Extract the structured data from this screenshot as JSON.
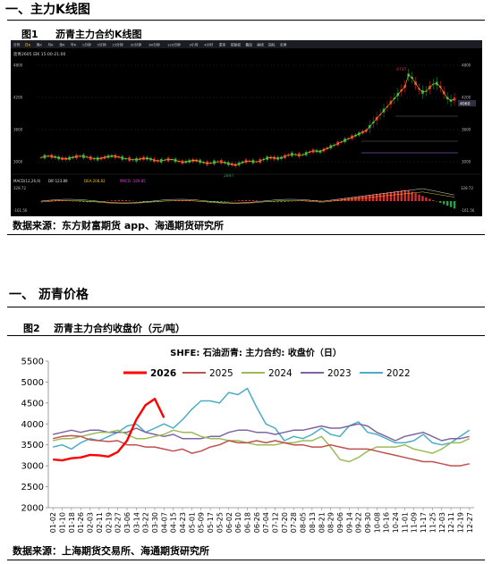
{
  "section1": {
    "title": "一、主力K线图"
  },
  "figure1": {
    "label": "图1",
    "title": "沥青主力合约K线图",
    "source": "数据来源：东方财富期货 app、海通期货研究所",
    "toolbar": [
      "分时",
      "日K",
      "周K",
      "月K",
      "季K",
      "年K",
      "1分钟",
      "5分钟",
      "15分钟",
      "30分钟",
      "60分钟",
      "120分钟",
      "3小时",
      "4小时",
      "更多",
      "前复权",
      "叠加",
      "画线",
      "指标",
      "全屏"
    ],
    "info_text": "沥青2605 日K 15:00-21:00",
    "high_label": "4747",
    "low_label": "2897",
    "last_label": "4060",
    "y_ticks": [
      "4800",
      "4200",
      "3600",
      "3000"
    ],
    "macd_label": "MACD(12,26,9)",
    "macd_legend": [
      "DIF:123.89",
      "DEA:208.82",
      "MACD:-169.85"
    ],
    "macd_ticks": [
      "328.72",
      "161.56",
      "-161.56"
    ],
    "colors": {
      "up": "#e82a2a",
      "down": "#1aa84a",
      "bg": "#000000",
      "dif": "#e0e0e0",
      "dea": "#e8c020"
    }
  },
  "section2": {
    "title": "一、 沥青价格"
  },
  "figure2": {
    "label": "图2",
    "title": "沥青主力合约收盘价（元/吨）",
    "source": "数据来源：上海期货交易所、海通期货研究所",
    "colors": {
      "2026": "#ff0000",
      "2025": "#c0504d",
      "2024": "#9bbb59",
      "2023": "#8064a2",
      "2022": "#4bacc6"
    }
  },
  "chart_data": {
    "type": "line",
    "title": "SHFE: 石油沥青: 主力合约: 收盘价（日）",
    "xlabel": "",
    "ylabel": "",
    "ylim": [
      2000,
      5500
    ],
    "y_ticks": [
      2000,
      2500,
      3000,
      3500,
      4000,
      4500,
      5000,
      5500
    ],
    "x": [
      "01-02",
      "01-10",
      "01-18",
      "01-26",
      "02-03",
      "02-11",
      "02-19",
      "02-27",
      "03-06",
      "03-14",
      "03-22",
      "03-30",
      "04-07",
      "04-15",
      "04-23",
      "05-01",
      "05-09",
      "05-17",
      "05-25",
      "06-02",
      "06-10",
      "06-18",
      "06-26",
      "07-04",
      "07-12",
      "07-20",
      "07-28",
      "08-05",
      "08-13",
      "08-21",
      "08-29",
      "09-06",
      "09-14",
      "09-22",
      "09-30",
      "10-08",
      "10-16",
      "10-24",
      "11-01",
      "11-09",
      "11-17",
      "11-25",
      "12-03",
      "12-11",
      "12-19",
      "12-27"
    ],
    "legend_position": "top",
    "grid": false,
    "series": [
      {
        "name": "2026",
        "values": [
          3150,
          3130,
          3180,
          3200,
          3260,
          3250,
          3220,
          3330,
          3600,
          4100,
          4450,
          4600,
          4150,
          null,
          null,
          null,
          null,
          null,
          null,
          null,
          null,
          null,
          null,
          null,
          null,
          null,
          null,
          null,
          null,
          null,
          null,
          null,
          null,
          null,
          null,
          null,
          null,
          null,
          null,
          null,
          null,
          null,
          null,
          null,
          null,
          null
        ]
      },
      {
        "name": "2025",
        "values": [
          3650,
          3700,
          3720,
          3700,
          3620,
          3600,
          3580,
          3600,
          3500,
          3500,
          3450,
          3450,
          3400,
          3350,
          3400,
          3300,
          3350,
          3450,
          3500,
          3600,
          3550,
          3550,
          3600,
          3550,
          3600,
          3550,
          3500,
          3500,
          3450,
          3450,
          3500,
          3450,
          3400,
          3400,
          3400,
          3350,
          3300,
          3250,
          3200,
          3150,
          3100,
          3100,
          3050,
          3000,
          3000,
          3050
        ]
      },
      {
        "name": "2024",
        "values": [
          3600,
          3650,
          3650,
          3700,
          3750,
          3800,
          3800,
          3850,
          3750,
          3650,
          3650,
          3700,
          3750,
          3850,
          3800,
          3800,
          3700,
          3650,
          3650,
          3600,
          3600,
          3550,
          3500,
          3500,
          3500,
          3550,
          3550,
          3600,
          3600,
          3700,
          3450,
          3150,
          3100,
          3200,
          3350,
          3450,
          3450,
          3450,
          3500,
          3400,
          3350,
          3300,
          3400,
          3550,
          3550,
          3650
        ]
      },
      {
        "name": "2023",
        "values": [
          3750,
          3800,
          3850,
          3800,
          3850,
          3850,
          3800,
          3800,
          3800,
          3900,
          3800,
          3750,
          3700,
          3750,
          3650,
          3650,
          3650,
          3700,
          3700,
          3800,
          3850,
          3850,
          3800,
          3800,
          3750,
          3800,
          3850,
          3850,
          3900,
          3950,
          3900,
          3900,
          3950,
          4000,
          3950,
          3800,
          3700,
          3600,
          3700,
          3750,
          3800,
          3700,
          3600,
          3650,
          3650,
          3700
        ]
      },
      {
        "name": "2022",
        "values": [
          3450,
          3500,
          3400,
          3550,
          3650,
          3600,
          3700,
          3800,
          3950,
          4000,
          3800,
          3900,
          4000,
          3900,
          4100,
          4350,
          4550,
          4550,
          4500,
          4750,
          4700,
          4850,
          4400,
          4000,
          3900,
          3600,
          3700,
          3650,
          3750,
          3900,
          3750,
          3700,
          3950,
          4050,
          3800,
          3750,
          3650,
          3550,
          3550,
          3600,
          3750,
          3550,
          3500,
          3550,
          3700,
          3850
        ]
      }
    ]
  }
}
